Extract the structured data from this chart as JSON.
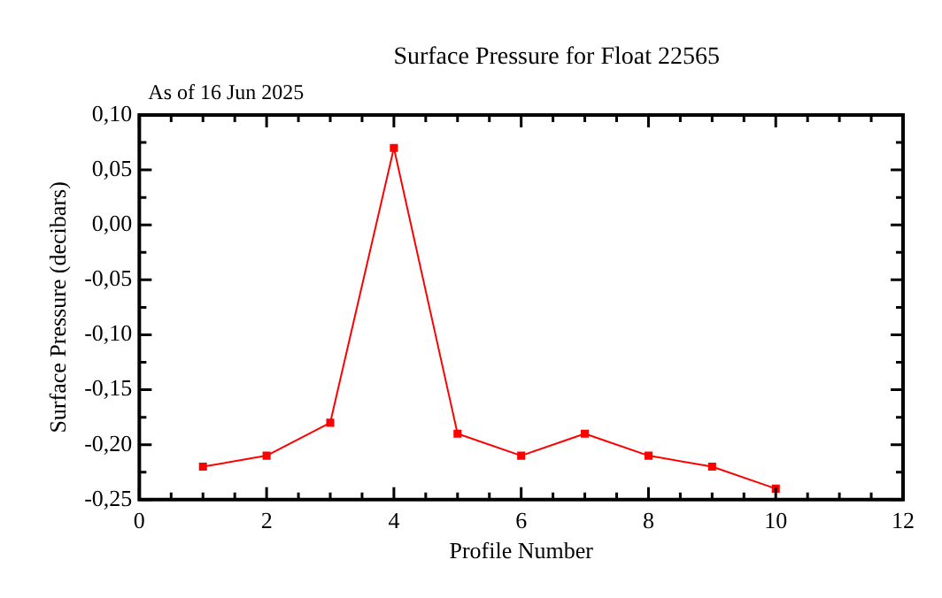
{
  "chart_data": {
    "type": "line",
    "title": "Surface Pressure for Float 22565",
    "subtitle": "As of 16 Jun 2025",
    "xlabel": "Profile Number",
    "ylabel": "Surface Pressure (decibars)",
    "x": [
      1,
      2,
      3,
      4,
      5,
      6,
      7,
      8,
      9,
      10
    ],
    "series": [
      {
        "color": "#ff0000",
        "values": [
          -0.22,
          -0.21,
          -0.18,
          0.07,
          -0.19,
          -0.21,
          -0.19,
          -0.21,
          -0.22,
          -0.24
        ]
      }
    ],
    "xlim": [
      0,
      12
    ],
    "xticks": [
      0,
      {
        "value": 0.5,
        "label": null
      },
      {
        "value": 1,
        "label": null
      },
      {
        "value": 1.5,
        "label": null
      },
      2,
      {
        "value": 2.5,
        "label": null
      },
      {
        "value": 3,
        "label": null
      },
      {
        "value": 3.5,
        "label": null
      },
      4,
      {
        "value": 4.5,
        "label": null
      },
      {
        "value": 5,
        "label": null
      },
      {
        "value": 5.5,
        "label": null
      },
      6,
      {
        "value": 6.5,
        "label": null
      },
      {
        "value": 7,
        "label": null
      },
      {
        "value": 7.5,
        "label": null
      },
      8,
      {
        "value": 8.5,
        "label": null
      },
      {
        "value": 9,
        "label": null
      },
      {
        "value": 9.5,
        "label": null
      },
      10,
      {
        "value": 10.5,
        "label": null
      },
      {
        "value": 11,
        "label": null
      },
      {
        "value": 11.5,
        "label": null
      },
      12
    ],
    "ylim": [
      -0.25,
      0.1
    ],
    "yticks": [
      {
        "value": -0.25,
        "label": "-0,25"
      },
      {
        "value": -0.225,
        "label": null
      },
      {
        "value": -0.2,
        "label": "-0,20"
      },
      {
        "value": -0.175,
        "label": null
      },
      {
        "value": -0.15,
        "label": "-0,15"
      },
      {
        "value": -0.125,
        "label": null
      },
      {
        "value": -0.1,
        "label": "-0,10"
      },
      {
        "value": -0.075,
        "label": null
      },
      {
        "value": -0.05,
        "label": "-0,05"
      },
      {
        "value": -0.025,
        "label": null
      },
      {
        "value": 0,
        "label": "0,00"
      },
      {
        "value": 0.025,
        "label": null
      },
      {
        "value": 0.05,
        "label": "0,05"
      },
      {
        "value": 0.075,
        "label": null
      },
      {
        "value": 0.1,
        "label": "0,10"
      }
    ],
    "grid": false,
    "legend": false,
    "marker": "square",
    "line_style": "solid"
  }
}
